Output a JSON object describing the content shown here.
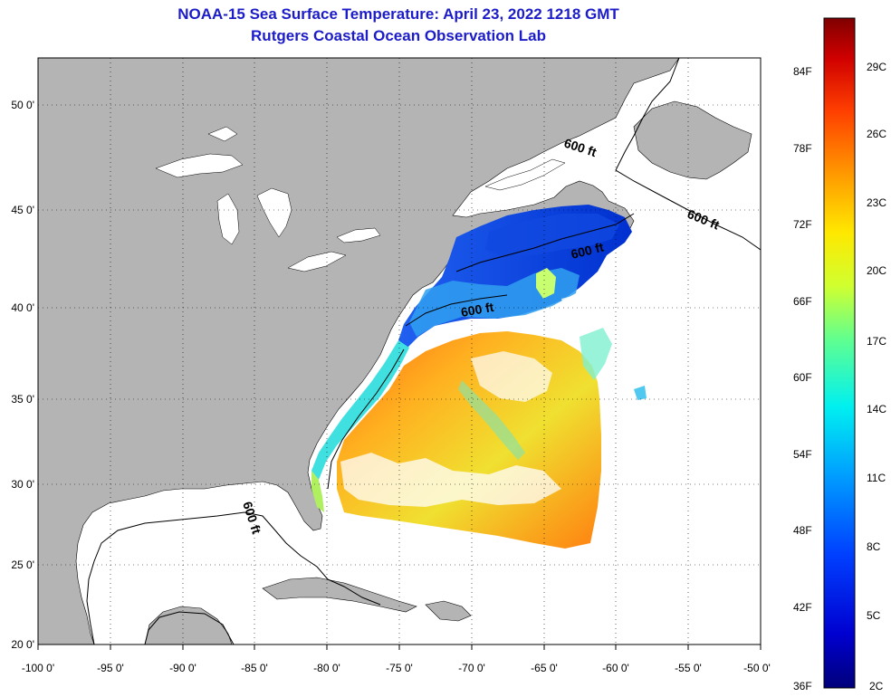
{
  "title": "NOAA-15 Sea Surface Temperature:  April 23, 2022 1218 GMT",
  "subtitle": "Rutgers Coastal Ocean Observation Lab",
  "lat_labels": [
    "50 0'",
    "45 0'",
    "40 0'",
    "35 0'",
    "30 0'",
    "25 0'",
    "20 0'"
  ],
  "lon_labels": [
    "-100 0'",
    "-95 0'",
    "-90 0'",
    "-85 0'",
    "-80 0'",
    "-75 0'",
    "-70 0'",
    "-65 0'",
    "-60 0'",
    "-55 0'",
    "-50 0'"
  ],
  "contour_labels": [
    "600 ft",
    "600 ft",
    "600 ft",
    "600 ft",
    "600 ft"
  ],
  "colorbar": {
    "fahrenheit": [
      "84F",
      "78F",
      "72F",
      "66F",
      "60F",
      "54F",
      "48F",
      "42F",
      "36F"
    ],
    "celsius": [
      "29C",
      "26C",
      "23C",
      "20C",
      "17C",
      "14C",
      "11C",
      "8C",
      "5C",
      "2C"
    ]
  },
  "colors": {
    "land": "#b4b4b4",
    "title": "#1c1cc8",
    "gridline": "#000000"
  }
}
